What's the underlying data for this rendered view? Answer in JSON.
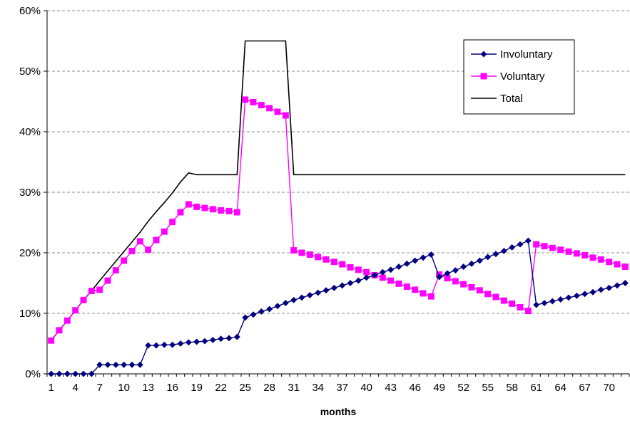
{
  "chart_data": {
    "type": "line",
    "xlabel": "months",
    "ylabel": "",
    "xlim": [
      1,
      72
    ],
    "ylim": [
      0,
      60
    ],
    "y_tick_values": [
      0,
      10,
      20,
      30,
      40,
      50,
      60
    ],
    "y_tick_labels": [
      "0%",
      "10%",
      "20%",
      "30%",
      "40%",
      "50%",
      "60%"
    ],
    "x_tick_values": [
      1,
      4,
      7,
      10,
      13,
      16,
      19,
      22,
      25,
      28,
      31,
      34,
      37,
      40,
      43,
      46,
      49,
      52,
      55,
      58,
      61,
      64,
      67,
      70
    ],
    "x_tick_labels": [
      "1",
      "4",
      "7",
      "10",
      "13",
      "16",
      "19",
      "22",
      "25",
      "28",
      "31",
      "34",
      "37",
      "40",
      "43",
      "46",
      "49",
      "52",
      "55",
      "58",
      "61",
      "64",
      "67",
      "70"
    ],
    "grid": "horizontal dashed",
    "legend_position": "top-right",
    "x": [
      1,
      2,
      3,
      4,
      5,
      6,
      7,
      8,
      9,
      10,
      11,
      12,
      13,
      14,
      15,
      16,
      17,
      18,
      19,
      20,
      21,
      22,
      23,
      24,
      25,
      26,
      27,
      28,
      29,
      30,
      31,
      32,
      33,
      34,
      35,
      36,
      37,
      38,
      39,
      40,
      41,
      42,
      43,
      44,
      45,
      46,
      47,
      48,
      49,
      50,
      51,
      52,
      53,
      54,
      55,
      56,
      57,
      58,
      59,
      60,
      61,
      62,
      63,
      64,
      65,
      66,
      67,
      68,
      69,
      70,
      71,
      72
    ],
    "series": [
      {
        "name": "Involuntary",
        "color": "#000080",
        "marker": "diamond",
        "values": [
          0,
          0,
          0,
          0,
          0,
          0,
          1.5,
          1.5,
          1.5,
          1.5,
          1.5,
          1.5,
          4.7,
          4.7,
          4.8,
          4.8,
          5.0,
          5.2,
          5.3,
          5.4,
          5.6,
          5.8,
          5.9,
          6.1,
          9.3,
          9.8,
          10.3,
          10.7,
          11.2,
          11.7,
          12.2,
          12.6,
          13.0,
          13.4,
          13.8,
          14.2,
          14.6,
          15.0,
          15.4,
          15.9,
          16.3,
          16.8,
          17.2,
          17.7,
          18.2,
          18.7,
          19.2,
          19.7,
          16.0,
          16.6,
          17.1,
          17.7,
          18.2,
          18.7,
          19.3,
          19.8,
          20.3,
          20.9,
          21.4,
          22.0,
          11.4,
          11.7,
          12.0,
          12.3,
          12.6,
          12.9,
          13.2,
          13.5,
          13.9,
          14.2,
          14.6,
          15.0
        ]
      },
      {
        "name": "Voluntary",
        "color": "#FF00FF",
        "marker": "square",
        "values": [
          5.5,
          7.2,
          8.8,
          10.5,
          12.2,
          13.7,
          13.9,
          15.4,
          17.1,
          18.7,
          20.3,
          21.9,
          20.5,
          22.1,
          23.5,
          25.1,
          26.7,
          28.0,
          27.6,
          27.4,
          27.2,
          27.0,
          26.9,
          26.7,
          45.3,
          44.9,
          44.4,
          43.9,
          43.3,
          42.7,
          20.4,
          20.0,
          19.7,
          19.3,
          18.9,
          18.5,
          18.1,
          17.6,
          17.2,
          16.8,
          16.3,
          15.9,
          15.4,
          14.9,
          14.4,
          13.9,
          13.3,
          12.8,
          16.4,
          15.8,
          15.3,
          14.8,
          14.3,
          13.8,
          13.2,
          12.7,
          12.1,
          11.6,
          11.0,
          10.4,
          21.4,
          21.1,
          20.8,
          20.5,
          20.2,
          19.9,
          19.6,
          19.2,
          18.9,
          18.5,
          18.1,
          17.7
        ]
      },
      {
        "name": "Total",
        "color": "#000000",
        "marker": "none",
        "values": [
          5.5,
          7.2,
          8.8,
          10.5,
          12.2,
          13.7,
          15.4,
          17.0,
          18.6,
          20.2,
          21.8,
          23.4,
          25.2,
          26.8,
          28.3,
          29.9,
          31.7,
          33.2,
          32.9,
          32.9,
          32.9,
          32.9,
          32.9,
          32.9,
          55,
          55,
          55,
          55,
          55,
          55,
          32.9,
          32.9,
          32.9,
          32.9,
          32.9,
          32.9,
          32.9,
          32.9,
          32.9,
          32.9,
          32.9,
          32.9,
          32.9,
          32.9,
          32.9,
          32.9,
          32.9,
          32.9,
          32.9,
          32.9,
          32.9,
          32.9,
          32.9,
          32.9,
          32.9,
          32.9,
          32.9,
          32.9,
          32.9,
          32.9,
          32.9,
          32.9,
          32.9,
          32.9,
          32.9,
          32.9,
          32.9,
          32.9,
          32.9,
          32.9,
          32.9,
          32.9
        ]
      }
    ]
  }
}
